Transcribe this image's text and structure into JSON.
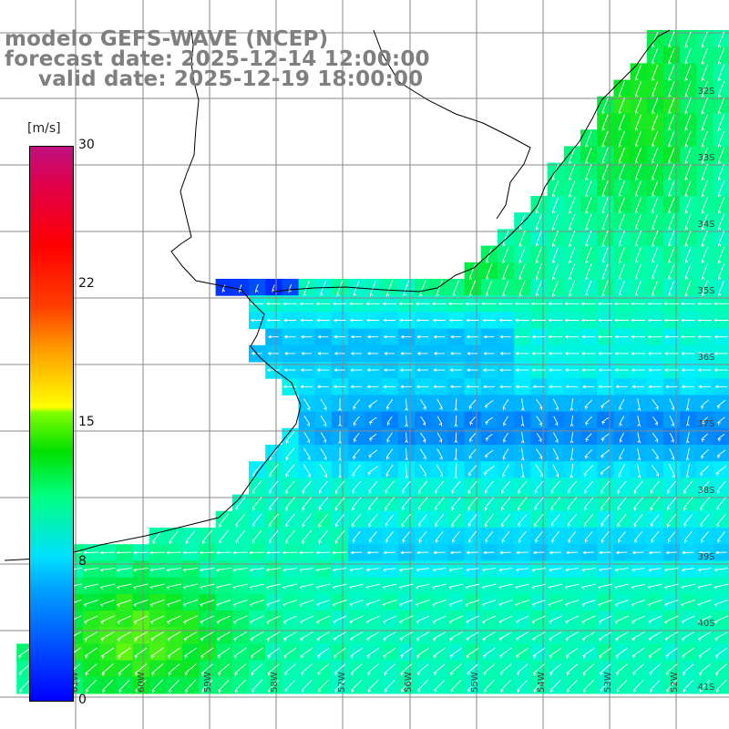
{
  "title": {
    "line1": "modelo GEFS-WAVE (NCEP)",
    "line2": "forecast date: 2025-12-14 12:00:00",
    "line3": "valid date: 2025-12-19 18:00:00"
  },
  "colorbar": {
    "unit": "[m/s]",
    "ticks": [
      "30",
      "22",
      "15",
      "8",
      "0"
    ],
    "colors": [
      "#0000ff",
      "#00a0ff",
      "#00e0ff",
      "#00ff80",
      "#00e000",
      "#80ff00",
      "#ffff00",
      "#ff4000",
      "#ff0000",
      "#c0107f"
    ]
  },
  "map": {
    "lat_labels": [
      "32S",
      "33S",
      "34S",
      "35S",
      "36S",
      "37S",
      "38S",
      "39S",
      "40S",
      "41S"
    ],
    "lon_labels": [
      "61W",
      "60W",
      "59W",
      "58W",
      "57W",
      "56W",
      "55W",
      "54W",
      "53W",
      "52W"
    ],
    "land_color": "#ffffff",
    "grid_color": "#888888",
    "arrow_color": "#ffffff"
  }
}
